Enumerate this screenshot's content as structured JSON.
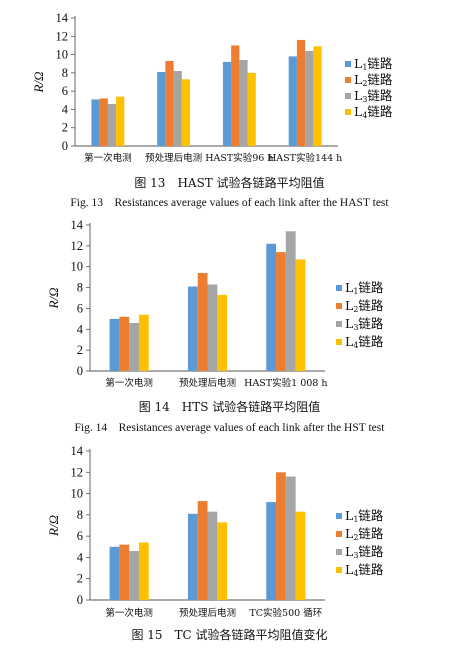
{
  "colors": {
    "L1": "#5b9bd5",
    "L2": "#ed7d31",
    "L3": "#a5a5a5",
    "L4": "#ffc000"
  },
  "chart_data": [
    {
      "type": "bar",
      "ylabel": "R/Ω",
      "ylim": [
        0,
        14
      ],
      "yticks": [
        0,
        2,
        4,
        6,
        8,
        10,
        12,
        14
      ],
      "legend_position": "right",
      "categories": [
        "第一次电测",
        "预处理后电测",
        "HAST实验96 h",
        "HAST实验144 h"
      ],
      "series": [
        {
          "name": "L1链路",
          "values": [
            5.1,
            8.1,
            9.2,
            9.8
          ]
        },
        {
          "name": "L2链路",
          "values": [
            5.2,
            9.3,
            11.0,
            11.6
          ]
        },
        {
          "name": "L3链路",
          "values": [
            4.6,
            8.2,
            9.4,
            10.4
          ]
        },
        {
          "name": "L4链路",
          "values": [
            5.4,
            7.3,
            8.0,
            10.9
          ]
        }
      ],
      "caption_cn": "图 13　HAST 试验各链路平均阻值",
      "caption_en": "Fig. 13　Resistances average values of each link after the HAST test"
    },
    {
      "type": "bar",
      "ylabel": "R/Ω",
      "ylim": [
        0,
        14
      ],
      "yticks": [
        0,
        2,
        4,
        6,
        8,
        10,
        12,
        14
      ],
      "legend_position": "right",
      "categories": [
        "第一次电测",
        "预处理后电测",
        "HAST实验1 008 h"
      ],
      "series": [
        {
          "name": "L1链路",
          "values": [
            5.0,
            8.1,
            12.2
          ]
        },
        {
          "name": "L2链路",
          "values": [
            5.2,
            9.4,
            11.4
          ]
        },
        {
          "name": "L3链路",
          "values": [
            4.6,
            8.3,
            13.4
          ]
        },
        {
          "name": "L4链路",
          "values": [
            5.4,
            7.3,
            10.7
          ]
        }
      ],
      "caption_cn": "图 14　HTS 试验各链路平均阻值",
      "caption_en": "Fig. 14　Resistances average values of each link after the HST test"
    },
    {
      "type": "bar",
      "ylabel": "R/Ω",
      "ylim": [
        0,
        14
      ],
      "yticks": [
        0,
        2,
        4,
        6,
        8,
        10,
        12,
        14
      ],
      "legend_position": "right",
      "categories": [
        "第一次电测",
        "预处理后电测",
        "TC实验500 循环"
      ],
      "series": [
        {
          "name": "L1链路",
          "values": [
            5.0,
            8.1,
            9.2
          ]
        },
        {
          "name": "L2链路",
          "values": [
            5.2,
            9.3,
            12.0
          ]
        },
        {
          "name": "L3链路",
          "values": [
            4.6,
            8.3,
            11.6
          ]
        },
        {
          "name": "L4链路",
          "values": [
            5.4,
            7.3,
            8.3
          ]
        }
      ],
      "caption_cn": "图 15　TC 试验各链路平均阻值变化",
      "caption_en": ""
    }
  ]
}
